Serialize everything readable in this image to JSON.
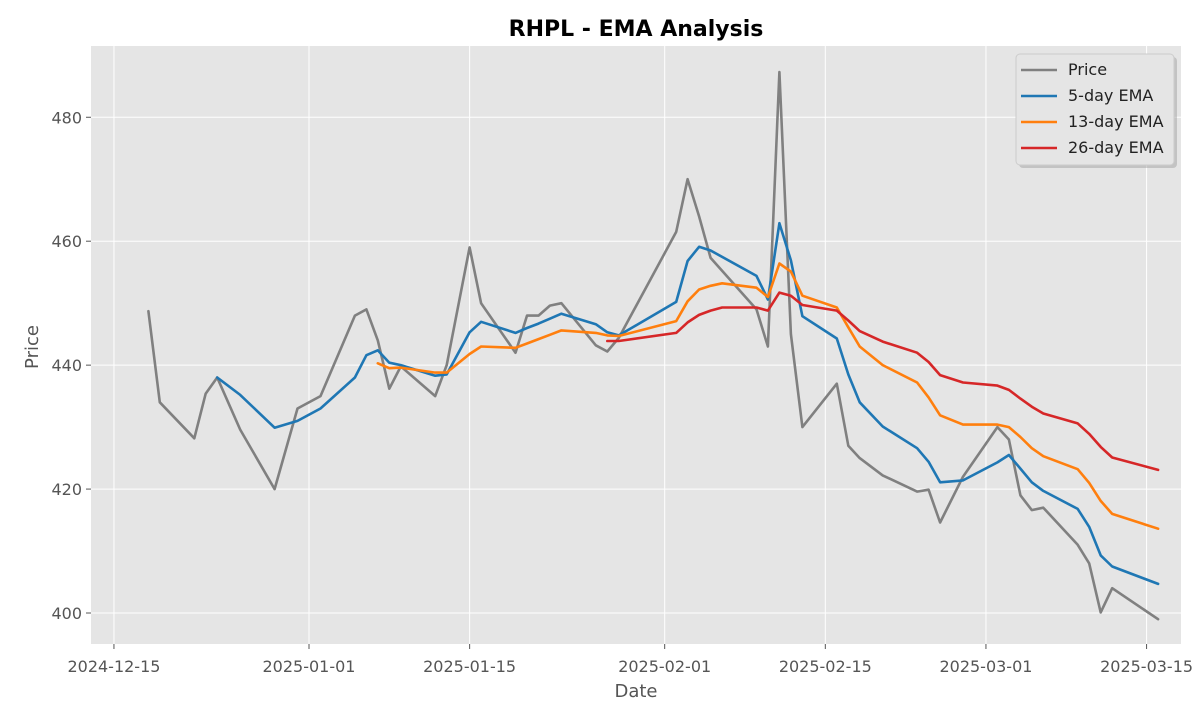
{
  "chart_data": {
    "type": "line",
    "title": "RHPL - EMA Analysis",
    "xlabel": "Date",
    "ylabel": "Price",
    "xlim": [
      "2024-12-13",
      "2025-03-18"
    ],
    "ylim": [
      395,
      491.5
    ],
    "x_ticks": [
      "2024-12-15",
      "2025-01-01",
      "2025-01-15",
      "2025-02-01",
      "2025-02-15",
      "2025-03-01",
      "2025-03-15"
    ],
    "y_ticks": [
      400,
      420,
      440,
      460,
      480
    ],
    "grid": true,
    "legend_position": "top-right",
    "series": [
      {
        "name": "Price",
        "color": "#808080",
        "points": [
          [
            "2024-12-18",
            448.7
          ],
          [
            "2024-12-19",
            434.0
          ],
          [
            "2024-12-22",
            428.2
          ],
          [
            "2024-12-23",
            435.4
          ],
          [
            "2024-12-24",
            438.0
          ],
          [
            "2024-12-26",
            429.6
          ],
          [
            "2024-12-29",
            420.0
          ],
          [
            "2024-12-31",
            433.0
          ],
          [
            "2025-01-02",
            435.0
          ],
          [
            "2025-01-05",
            448.0
          ],
          [
            "2025-01-06",
            449.0
          ],
          [
            "2025-01-07",
            444.0
          ],
          [
            "2025-01-08",
            436.2
          ],
          [
            "2025-01-09",
            439.8
          ],
          [
            "2025-01-12",
            435.0
          ],
          [
            "2025-01-13",
            440.0
          ],
          [
            "2025-01-15",
            459.0
          ],
          [
            "2025-01-16",
            450.0
          ],
          [
            "2025-01-19",
            442.0
          ],
          [
            "2025-01-20",
            448.0
          ],
          [
            "2025-01-21",
            448.0
          ],
          [
            "2025-01-22",
            449.6
          ],
          [
            "2025-01-23",
            450.0
          ],
          [
            "2025-01-26",
            443.2
          ],
          [
            "2025-01-27",
            442.2
          ],
          [
            "2025-01-28",
            444.4
          ],
          [
            "2025-02-02",
            461.5
          ],
          [
            "2025-02-03",
            470.0
          ],
          [
            "2025-02-04",
            464.0
          ],
          [
            "2025-02-05",
            457.3
          ],
          [
            "2025-02-09",
            449.0
          ],
          [
            "2025-02-10",
            443.0
          ],
          [
            "2025-02-11",
            487.3
          ],
          [
            "2025-02-12",
            445.0
          ],
          [
            "2025-02-13",
            430.0
          ],
          [
            "2025-02-16",
            437.0
          ],
          [
            "2025-02-17",
            427.0
          ],
          [
            "2025-02-18",
            425.0
          ],
          [
            "2025-02-20",
            422.2
          ],
          [
            "2025-02-23",
            419.6
          ],
          [
            "2025-02-24",
            419.9
          ],
          [
            "2025-02-25",
            414.6
          ],
          [
            "2025-02-27",
            422.0
          ],
          [
            "2025-03-02",
            430.0
          ],
          [
            "2025-03-03",
            428.0
          ],
          [
            "2025-03-04",
            419.0
          ],
          [
            "2025-03-05",
            416.6
          ],
          [
            "2025-03-06",
            417.0
          ],
          [
            "2025-03-09",
            411.0
          ],
          [
            "2025-03-10",
            408.0
          ],
          [
            "2025-03-11",
            400.1
          ],
          [
            "2025-03-12",
            404.0
          ],
          [
            "2025-03-16",
            399.0
          ]
        ]
      },
      {
        "name": "5-day EMA",
        "color": "#1f77b4",
        "points": [
          [
            "2024-12-24",
            438.0
          ],
          [
            "2024-12-26",
            435.2
          ],
          [
            "2024-12-29",
            429.9
          ],
          [
            "2024-12-31",
            431.0
          ],
          [
            "2025-01-02",
            433.0
          ],
          [
            "2025-01-05",
            438.0
          ],
          [
            "2025-01-06",
            441.6
          ],
          [
            "2025-01-07",
            442.4
          ],
          [
            "2025-01-08",
            440.4
          ],
          [
            "2025-01-09",
            440.0
          ],
          [
            "2025-01-12",
            438.3
          ],
          [
            "2025-01-13",
            438.5
          ],
          [
            "2025-01-15",
            445.3
          ],
          [
            "2025-01-16",
            447.0
          ],
          [
            "2025-01-19",
            445.2
          ],
          [
            "2025-01-20",
            446.0
          ],
          [
            "2025-01-21",
            446.7
          ],
          [
            "2025-01-22",
            447.5
          ],
          [
            "2025-01-23",
            448.3
          ],
          [
            "2025-01-26",
            446.6
          ],
          [
            "2025-01-27",
            445.3
          ],
          [
            "2025-01-28",
            444.8
          ],
          [
            "2025-02-02",
            450.2
          ],
          [
            "2025-02-03",
            456.8
          ],
          [
            "2025-02-04",
            459.1
          ],
          [
            "2025-02-05",
            458.5
          ],
          [
            "2025-02-09",
            454.4
          ],
          [
            "2025-02-10",
            450.6
          ],
          [
            "2025-02-11",
            462.9
          ],
          [
            "2025-02-12",
            456.9
          ],
          [
            "2025-02-13",
            447.9
          ],
          [
            "2025-02-16",
            444.3
          ],
          [
            "2025-02-17",
            438.5
          ],
          [
            "2025-02-18",
            434.0
          ],
          [
            "2025-02-20",
            430.1
          ],
          [
            "2025-02-23",
            426.6
          ],
          [
            "2025-02-24",
            424.4
          ],
          [
            "2025-02-25",
            421.1
          ],
          [
            "2025-02-27",
            421.4
          ],
          [
            "2025-03-02",
            424.3
          ],
          [
            "2025-03-03",
            425.5
          ],
          [
            "2025-03-04",
            423.3
          ],
          [
            "2025-03-05",
            421.1
          ],
          [
            "2025-03-06",
            419.7
          ],
          [
            "2025-03-09",
            416.8
          ],
          [
            "2025-03-10",
            413.9
          ],
          [
            "2025-03-11",
            409.3
          ],
          [
            "2025-03-12",
            407.5
          ],
          [
            "2025-03-16",
            404.7
          ]
        ]
      },
      {
        "name": "13-day EMA",
        "color": "#ff7f0e",
        "points": [
          [
            "2025-01-07",
            440.3
          ],
          [
            "2025-01-08",
            439.5
          ],
          [
            "2025-01-09",
            439.6
          ],
          [
            "2025-01-12",
            438.8
          ],
          [
            "2025-01-13",
            438.8
          ],
          [
            "2025-01-15",
            441.8
          ],
          [
            "2025-01-16",
            443.0
          ],
          [
            "2025-01-19",
            442.8
          ],
          [
            "2025-01-20",
            443.5
          ],
          [
            "2025-01-21",
            444.2
          ],
          [
            "2025-01-22",
            444.9
          ],
          [
            "2025-01-23",
            445.6
          ],
          [
            "2025-01-26",
            445.2
          ],
          [
            "2025-01-27",
            444.8
          ],
          [
            "2025-01-28",
            444.7
          ],
          [
            "2025-02-02",
            447.1
          ],
          [
            "2025-02-03",
            450.3
          ],
          [
            "2025-02-04",
            452.2
          ],
          [
            "2025-02-05",
            452.8
          ],
          [
            "2025-02-06",
            453.2
          ],
          [
            "2025-02-09",
            452.5
          ],
          [
            "2025-02-10",
            451.0
          ],
          [
            "2025-02-11",
            456.4
          ],
          [
            "2025-02-12",
            455.1
          ],
          [
            "2025-02-13",
            451.2
          ],
          [
            "2025-02-16",
            449.3
          ],
          [
            "2025-02-17",
            446.1
          ],
          [
            "2025-02-18",
            443.0
          ],
          [
            "2025-02-20",
            440.0
          ],
          [
            "2025-02-23",
            437.2
          ],
          [
            "2025-02-24",
            434.8
          ],
          [
            "2025-02-25",
            431.9
          ],
          [
            "2025-02-27",
            430.4
          ],
          [
            "2025-03-02",
            430.4
          ],
          [
            "2025-03-03",
            430.0
          ],
          [
            "2025-03-04",
            428.4
          ],
          [
            "2025-03-05",
            426.6
          ],
          [
            "2025-03-06",
            425.3
          ],
          [
            "2025-03-09",
            423.2
          ],
          [
            "2025-03-10",
            421.0
          ],
          [
            "2025-03-11",
            418.1
          ],
          [
            "2025-03-12",
            416.0
          ],
          [
            "2025-03-16",
            413.6
          ]
        ]
      },
      {
        "name": "26-day EMA",
        "color": "#d62728",
        "points": [
          [
            "2025-01-27",
            443.9
          ],
          [
            "2025-01-28",
            443.9
          ],
          [
            "2025-02-02",
            445.2
          ],
          [
            "2025-02-03",
            446.9
          ],
          [
            "2025-02-04",
            448.1
          ],
          [
            "2025-02-05",
            448.8
          ],
          [
            "2025-02-06",
            449.3
          ],
          [
            "2025-02-09",
            449.3
          ],
          [
            "2025-02-10",
            448.8
          ],
          [
            "2025-02-11",
            451.7
          ],
          [
            "2025-02-12",
            451.2
          ],
          [
            "2025-02-13",
            449.7
          ],
          [
            "2025-02-16",
            448.8
          ],
          [
            "2025-02-17",
            447.2
          ],
          [
            "2025-02-18",
            445.5
          ],
          [
            "2025-02-20",
            443.8
          ],
          [
            "2025-02-23",
            442.0
          ],
          [
            "2025-02-24",
            440.5
          ],
          [
            "2025-02-25",
            438.4
          ],
          [
            "2025-02-27",
            437.2
          ],
          [
            "2025-03-02",
            436.7
          ],
          [
            "2025-03-03",
            436.0
          ],
          [
            "2025-03-04",
            434.6
          ],
          [
            "2025-03-05",
            433.3
          ],
          [
            "2025-03-06",
            432.2
          ],
          [
            "2025-03-09",
            430.6
          ],
          [
            "2025-03-10",
            428.9
          ],
          [
            "2025-03-11",
            426.8
          ],
          [
            "2025-03-12",
            425.1
          ],
          [
            "2025-03-16",
            423.1
          ]
        ]
      }
    ]
  }
}
